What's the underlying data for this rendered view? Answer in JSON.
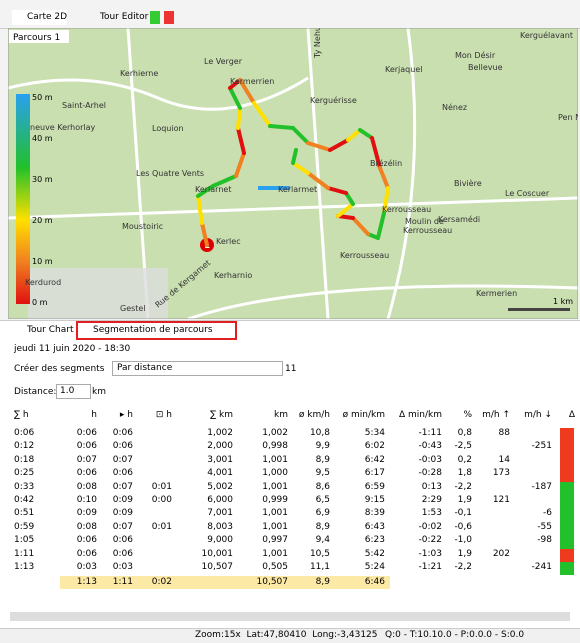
{
  "top_tabs": [
    "Carte 2D",
    "Tour Editor"
  ],
  "map": {
    "title": "Parcours  1",
    "labels": [
      "Kerhierne",
      "Le Verger",
      "Kermerrien",
      "Ty Nehue",
      "Kerguérisse",
      "Kerjaquel",
      "Mon Désir",
      "Bellevue",
      "Kerguélavant",
      "Nénez",
      "Pen N",
      "Saint-Arhel",
      "neuve Kerhorlay",
      "Loquion",
      "Les Quatre Vents",
      "Kerlarnet",
      "Kerlarmet",
      "Brézélin",
      "Bivière",
      "Le Coscuer",
      "Kersamédi",
      "Kerrousseau",
      "Moulin de",
      "Kerrousseau",
      "Kerrousseau",
      "Moustoiric",
      "Kerlec",
      "Kerharnio",
      "Kermerien",
      "Kerdurod",
      "Gestel",
      "Rue de Kergamet"
    ],
    "elevation_scale": [
      "50 m",
      "40 m",
      "30 m",
      "20 m",
      "10 m",
      "0 m"
    ],
    "scale_bar": "1 km"
  },
  "bottom_tabs": [
    "Tour Chart",
    "Segmentation de parcours"
  ],
  "segmentation": {
    "date": "jeudi 11 juin 2020 - 18:30",
    "create_label": "Créer des segments",
    "method": "Par distance",
    "segment_count": "11",
    "distance_label": "Distance:",
    "distance_value": "1.0",
    "distance_unit": "km"
  },
  "table": {
    "headers": [
      "∑ h",
      "h",
      "▸ h",
      "⊡ h",
      "∑ km",
      "km",
      "ø km/h",
      "ø min/km",
      "Δ min/km",
      "%",
      "m/h ↑",
      "m/h ↓",
      "Δ"
    ],
    "rows": [
      [
        "0:06",
        "0:06",
        "0:06",
        null,
        "1,002",
        "1,002",
        "10,8",
        "5:34",
        "-1:11",
        "0,8",
        "88",
        null
      ],
      [
        "0:12",
        "0:06",
        "0:06",
        null,
        "2,000",
        "0,998",
        "9,9",
        "6:02",
        "-0:43",
        "-2,5",
        null,
        "-251"
      ],
      [
        "0:18",
        "0:07",
        "0:07",
        null,
        "3,001",
        "1,001",
        "8,9",
        "6:42",
        "-0:03",
        "0,2",
        "14",
        null
      ],
      [
        "0:25",
        "0:06",
        "0:06",
        null,
        "4,001",
        "1,000",
        "9,5",
        "6:17",
        "-0:28",
        "1,8",
        "173",
        null
      ],
      [
        "0:33",
        "0:08",
        "0:07",
        "0:01",
        "5,002",
        "1,001",
        "8,6",
        "6:59",
        "0:13",
        "-2,2",
        null,
        "-187"
      ],
      [
        "0:42",
        "0:10",
        "0:09",
        "0:00",
        "6,000",
        "0,999",
        "6,5",
        "9:15",
        "2:29",
        "1,9",
        "121",
        null
      ],
      [
        "0:51",
        "0:09",
        "0:09",
        null,
        "7,001",
        "1,001",
        "6,9",
        "8:39",
        "1:53",
        "-0,1",
        null,
        "-6"
      ],
      [
        "0:59",
        "0:08",
        "0:07",
        "0:01",
        "8,003",
        "1,001",
        "8,9",
        "6:43",
        "-0:02",
        "-0,6",
        null,
        "-55"
      ],
      [
        "1:05",
        "0:06",
        "0:06",
        null,
        "9,000",
        "0,997",
        "9,4",
        "6:23",
        "-0:22",
        "-1,0",
        null,
        "-98"
      ],
      [
        "1:11",
        "0:06",
        "0:06",
        null,
        "10,001",
        "1,001",
        "10,5",
        "5:42",
        "-1:03",
        "1,9",
        "202",
        null
      ],
      [
        "1:13",
        "0:03",
        "0:03",
        null,
        "10,507",
        "0,505",
        "11,1",
        "5:24",
        "-1:21",
        "-2,2",
        null,
        "-241"
      ]
    ],
    "totals": [
      null,
      "1:13",
      "1:11",
      "0:02",
      null,
      "10,507",
      "8,9",
      "6:46"
    ],
    "marker_colors": [
      "#f03a1e",
      "#f03a1e",
      "#f03a1e",
      "#f03a1e",
      "#22c02a",
      "#22c02a",
      "#22c02a",
      "#22c02a",
      "#22c02a",
      "#f03a1e",
      "#22c02a"
    ]
  },
  "status": {
    "position": "Zoom:15x  Lat:47,80410  Long:-3,43125",
    "queue": "Q:0 - T:10.10.0 - P:0.0.0 - S:0.0"
  }
}
